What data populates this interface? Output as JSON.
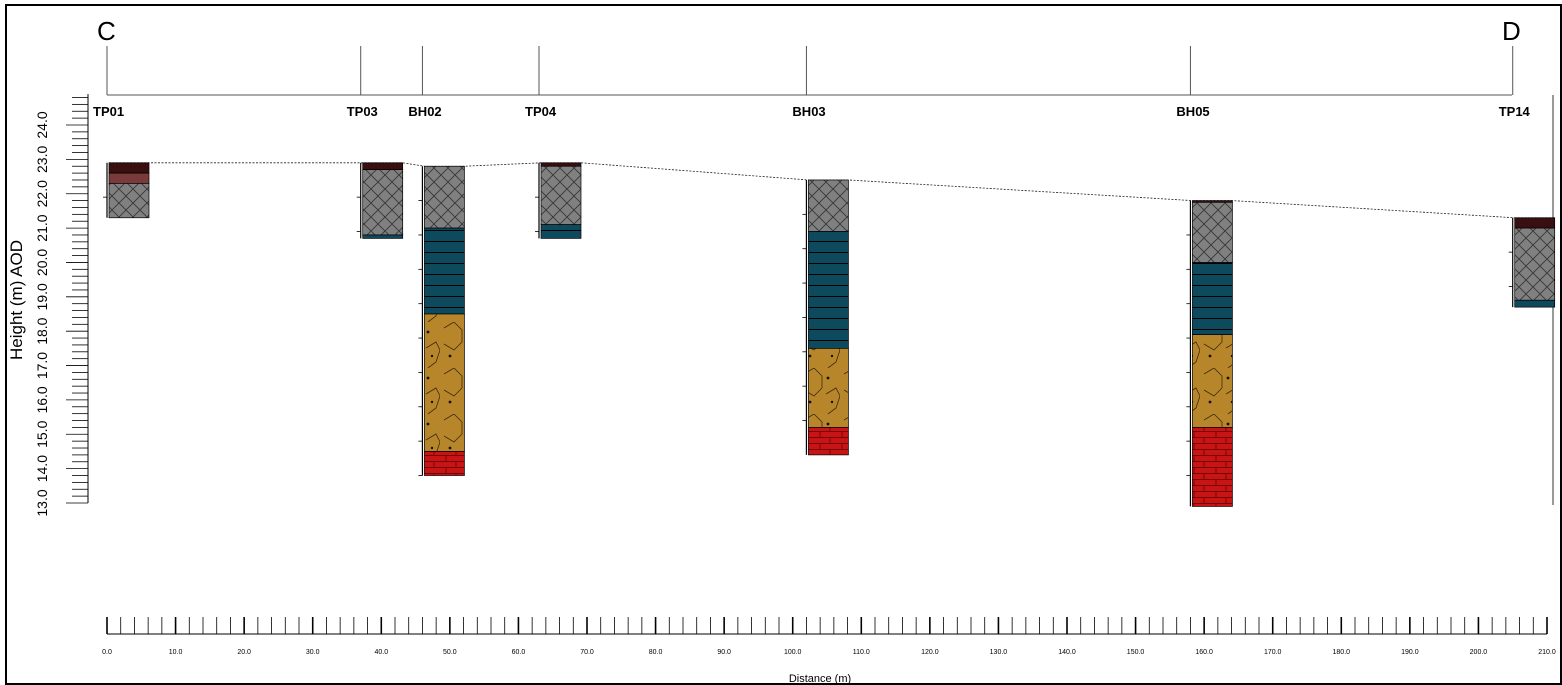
{
  "section": {
    "start_label": "C",
    "end_label": "D",
    "y_axis_label": "Height (m) AOD",
    "x_axis_label": "Distance (m)",
    "y_ticks": [
      "13.0",
      "14.0",
      "15.0",
      "16.0",
      "17.0",
      "18.0",
      "19.0",
      "20.0",
      "21.0",
      "22.0",
      "23.0",
      "24.0"
    ],
    "x_ticks": [
      "0.0",
      "10.0",
      "20.0",
      "30.0",
      "40.0",
      "50.0",
      "60.0",
      "70.0",
      "80.0",
      "90.0",
      "100.0",
      "110.0",
      "120.0",
      "130.0",
      "140.0",
      "150.0",
      "160.0",
      "170.0",
      "180.0",
      "190.0",
      "200.0",
      "210.0"
    ],
    "y_range": [
      13.0,
      24.9
    ],
    "x_range": [
      0,
      210
    ]
  },
  "colors": {
    "topsoil": "#3a0f10",
    "topsoil_light": "#7a3a3a",
    "made_ground": "#808080",
    "clay": "#0e4a5e",
    "gravel": "#b8862a",
    "bedrock": "#c81414"
  },
  "holes": [
    {
      "id": "TP01",
      "x": 0,
      "ground": 22.9,
      "layers": [
        {
          "type": "topsoil",
          "top": 22.9,
          "bottom": 22.6
        },
        {
          "type": "topsoil_light",
          "top": 22.6,
          "bottom": 22.3
        },
        {
          "type": "made_ground",
          "top": 22.3,
          "bottom": 21.3
        }
      ]
    },
    {
      "id": "TP03",
      "x": 37,
      "ground": 22.9,
      "layers": [
        {
          "type": "topsoil",
          "top": 22.9,
          "bottom": 22.7
        },
        {
          "type": "made_ground",
          "top": 22.7,
          "bottom": 20.8
        },
        {
          "type": "clay",
          "top": 20.8,
          "bottom": 20.7
        }
      ]
    },
    {
      "id": "BH02",
      "x": 46,
      "ground": 22.8,
      "layers": [
        {
          "type": "made_ground",
          "top": 22.8,
          "bottom": 21.0
        },
        {
          "type": "clay",
          "top": 21.0,
          "bottom": 18.5
        },
        {
          "type": "gravel",
          "top": 18.5,
          "bottom": 14.5
        },
        {
          "type": "bedrock",
          "top": 14.5,
          "bottom": 13.8
        }
      ]
    },
    {
      "id": "TP04",
      "x": 63,
      "ground": 22.9,
      "layers": [
        {
          "type": "topsoil",
          "top": 22.9,
          "bottom": 22.8
        },
        {
          "type": "made_ground",
          "top": 22.8,
          "bottom": 21.1
        },
        {
          "type": "clay",
          "top": 21.1,
          "bottom": 20.7
        }
      ]
    },
    {
      "id": "BH03",
      "x": 102,
      "ground": 22.4,
      "layers": [
        {
          "type": "made_ground",
          "top": 22.4,
          "bottom": 20.9
        },
        {
          "type": "clay",
          "top": 20.9,
          "bottom": 17.5
        },
        {
          "type": "gravel",
          "top": 17.5,
          "bottom": 15.2
        },
        {
          "type": "bedrock",
          "top": 15.2,
          "bottom": 14.4
        }
      ]
    },
    {
      "id": "BH05",
      "x": 158,
      "ground": 21.8,
      "layers": [
        {
          "type": "topsoil",
          "top": 21.8,
          "bottom": 21.75
        },
        {
          "type": "made_ground",
          "top": 21.75,
          "bottom": 20.0
        },
        {
          "type": "clay",
          "top": 20.0,
          "bottom": 17.9
        },
        {
          "type": "gravel",
          "top": 17.9,
          "bottom": 15.2
        },
        {
          "type": "bedrock",
          "top": 15.2,
          "bottom": 12.9
        }
      ]
    },
    {
      "id": "TP14",
      "x": 205,
      "ground": 21.3,
      "layers": [
        {
          "type": "topsoil",
          "top": 21.3,
          "bottom": 21.0
        },
        {
          "type": "made_ground",
          "top": 21.0,
          "bottom": 18.9
        },
        {
          "type": "clay",
          "top": 18.9,
          "bottom": 18.7
        }
      ]
    }
  ]
}
